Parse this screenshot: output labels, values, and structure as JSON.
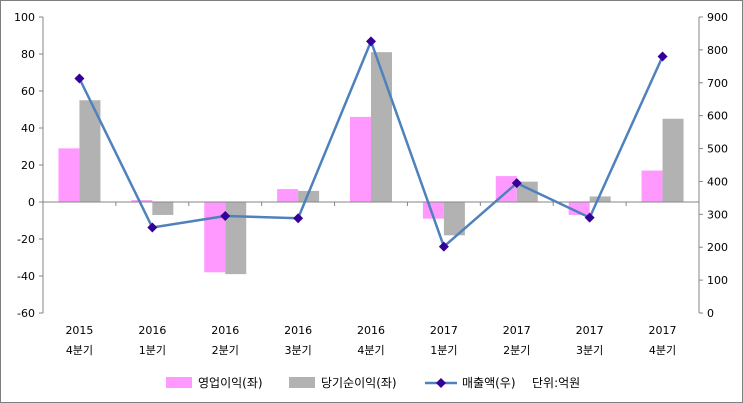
{
  "chart_data": {
    "type": "bar",
    "categories": [
      {
        "year": "2015",
        "quarter": "4분기"
      },
      {
        "year": "2016",
        "quarter": "1분기"
      },
      {
        "year": "2016",
        "quarter": "2분기"
      },
      {
        "year": "2016",
        "quarter": "3분기"
      },
      {
        "year": "2016",
        "quarter": "4분기"
      },
      {
        "year": "2017",
        "quarter": "1분기"
      },
      {
        "year": "2017",
        "quarter": "2분기"
      },
      {
        "year": "2017",
        "quarter": "3분기"
      },
      {
        "year": "2017",
        "quarter": "4분기"
      }
    ],
    "series": [
      {
        "name": "영업이익(좌)",
        "type": "bar",
        "axis": "left",
        "color": "#ff99ff",
        "values": [
          29,
          1,
          -38,
          7,
          46,
          -9,
          14,
          -7,
          17
        ]
      },
      {
        "name": "당기순이익(좌)",
        "type": "bar",
        "axis": "left",
        "color": "#b2b2b2",
        "values": [
          55,
          -7,
          -39,
          6,
          81,
          -18,
          11,
          3,
          45
        ]
      },
      {
        "name": "매출액(우)",
        "type": "line",
        "axis": "right",
        "color": "#4f81bd",
        "marker_color": "#330099",
        "values": [
          713,
          260,
          295,
          288,
          826,
          202,
          395,
          290,
          780
        ]
      }
    ],
    "y_left": {
      "min": -60,
      "max": 100,
      "ticks": [
        "-60",
        "-40",
        "-20",
        "0",
        "20",
        "40",
        "60",
        "80",
        "100"
      ]
    },
    "y_right": {
      "min": 0,
      "max": 900,
      "ticks": [
        "0",
        "100",
        "200",
        "300",
        "400",
        "500",
        "600",
        "700",
        "800",
        "900"
      ]
    },
    "unit_note": "단위:억원",
    "grid": false,
    "legend_position": "bottom"
  }
}
